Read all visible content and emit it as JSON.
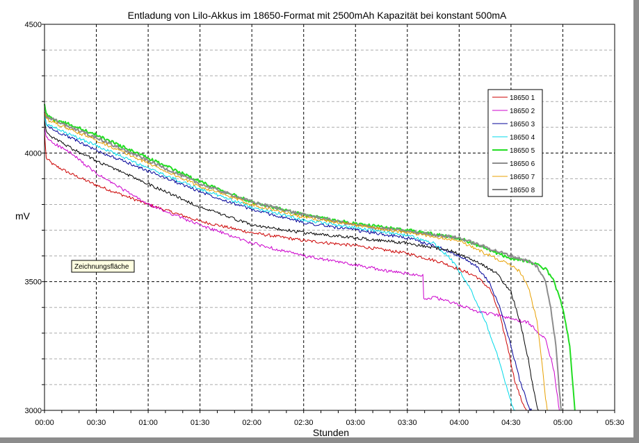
{
  "chart_data": {
    "type": "line",
    "title": "Entladung von Lilo-Akkus im 18650-Format mit 2500mAh Kapazität bei konstant 500mA",
    "xlabel": "Stunden",
    "ylabel": "mV",
    "xlim": [
      0,
      330
    ],
    "ylim": [
      3000,
      4500
    ],
    "x_ticks": [
      {
        "value": 0,
        "label": "00:00"
      },
      {
        "value": 30,
        "label": "00:30"
      },
      {
        "value": 60,
        "label": "01:00"
      },
      {
        "value": 90,
        "label": "01:30"
      },
      {
        "value": 120,
        "label": "02:00"
      },
      {
        "value": 150,
        "label": "02:30"
      },
      {
        "value": 180,
        "label": "03:00"
      },
      {
        "value": 210,
        "label": "03:30"
      },
      {
        "value": 240,
        "label": "04:00"
      },
      {
        "value": 270,
        "label": "04:30"
      },
      {
        "value": 300,
        "label": "05:00"
      },
      {
        "value": 330,
        "label": "05:30"
      }
    ],
    "y_ticks": [
      {
        "value": 3000,
        "label": "3000"
      },
      {
        "value": 3500,
        "label": "3500"
      },
      {
        "value": 4000,
        "label": "4000"
      },
      {
        "value": 4500,
        "label": "4500"
      }
    ],
    "grid": true,
    "legend_position": "right",
    "annotation": "Zeichnungsfläche",
    "series": [
      {
        "name": "18650 1",
        "color": "#cc0000",
        "x": [
          0,
          1,
          5,
          15,
          30,
          60,
          90,
          120,
          150,
          180,
          210,
          230,
          240,
          250,
          258,
          263,
          268,
          272,
          276,
          279
        ],
        "y": [
          4080,
          3980,
          3955,
          3920,
          3875,
          3800,
          3735,
          3690,
          3660,
          3640,
          3610,
          3575,
          3548,
          3520,
          3470,
          3380,
          3250,
          3120,
          3040,
          3000
        ]
      },
      {
        "name": "18650 2",
        "color": "#cc00cc",
        "x": [
          0,
          1,
          5,
          15,
          30,
          60,
          90,
          120,
          150,
          180,
          200,
          219,
          219.5,
          225,
          240,
          250,
          262,
          280,
          290,
          295,
          297,
          298
        ],
        "y": [
          4100,
          4060,
          4040,
          4000,
          3920,
          3800,
          3720,
          3650,
          3600,
          3565,
          3540,
          3525,
          3430,
          3440,
          3410,
          3385,
          3370,
          3340,
          3280,
          3150,
          3050,
          3000
        ]
      },
      {
        "name": "18650 3",
        "color": "#000099",
        "x": [
          0,
          1,
          5,
          15,
          30,
          60,
          90,
          120,
          150,
          180,
          210,
          230,
          240,
          250,
          258,
          264,
          270,
          275,
          279,
          281,
          282
        ],
        "y": [
          4160,
          4110,
          4090,
          4060,
          4010,
          3930,
          3850,
          3780,
          3730,
          3700,
          3670,
          3630,
          3600,
          3560,
          3490,
          3390,
          3250,
          3120,
          3040,
          3005,
          3000
        ]
      },
      {
        "name": "18650 4",
        "color": "#00d8e8",
        "x": [
          0,
          1,
          5,
          15,
          30,
          60,
          90,
          120,
          150,
          180,
          210,
          225,
          235,
          245,
          255,
          263,
          268,
          271,
          273
        ],
        "y": [
          4150,
          4110,
          4100,
          4070,
          4030,
          3940,
          3860,
          3790,
          3740,
          3710,
          3680,
          3650,
          3590,
          3490,
          3350,
          3200,
          3080,
          3010,
          3000
        ]
      },
      {
        "name": "18650 5",
        "color": "#22dd22",
        "x": [
          0,
          1,
          5,
          15,
          30,
          60,
          90,
          120,
          150,
          180,
          210,
          240,
          255,
          270,
          280,
          290,
          295,
          300,
          304,
          306,
          307
        ],
        "y": [
          4190,
          4150,
          4130,
          4110,
          4070,
          3980,
          3890,
          3810,
          3760,
          3725,
          3700,
          3670,
          3630,
          3590,
          3580,
          3550,
          3500,
          3400,
          3250,
          3080,
          3000
        ]
      },
      {
        "name": "18650 6",
        "color": "#8c8c8c",
        "x": [
          0,
          1,
          5,
          15,
          30,
          60,
          90,
          120,
          150,
          180,
          210,
          240,
          255,
          270,
          280,
          285,
          290,
          293,
          296,
          298,
          299
        ],
        "y": [
          4160,
          4140,
          4130,
          4100,
          4060,
          3970,
          3880,
          3810,
          3760,
          3720,
          3695,
          3670,
          3635,
          3600,
          3580,
          3560,
          3500,
          3400,
          3250,
          3080,
          3000
        ]
      },
      {
        "name": "18650 7",
        "color": "#e8a000",
        "x": [
          0,
          1,
          5,
          15,
          30,
          60,
          90,
          120,
          150,
          180,
          210,
          240,
          255,
          268,
          275,
          280,
          285,
          288,
          290,
          291
        ],
        "y": [
          4160,
          4130,
          4120,
          4090,
          4050,
          3960,
          3870,
          3800,
          3750,
          3720,
          3690,
          3660,
          3610,
          3570,
          3540,
          3480,
          3350,
          3180,
          3050,
          3000
        ]
      },
      {
        "name": "18650 8",
        "color": "#000000",
        "x": [
          0,
          1,
          5,
          15,
          30,
          60,
          90,
          120,
          150,
          180,
          210,
          235,
          250,
          262,
          270,
          275,
          280,
          283,
          285,
          286
        ],
        "y": [
          4130,
          4080,
          4060,
          4020,
          3970,
          3880,
          3790,
          3720,
          3690,
          3670,
          3650,
          3620,
          3580,
          3530,
          3460,
          3350,
          3200,
          3080,
          3020,
          3000
        ]
      }
    ]
  }
}
